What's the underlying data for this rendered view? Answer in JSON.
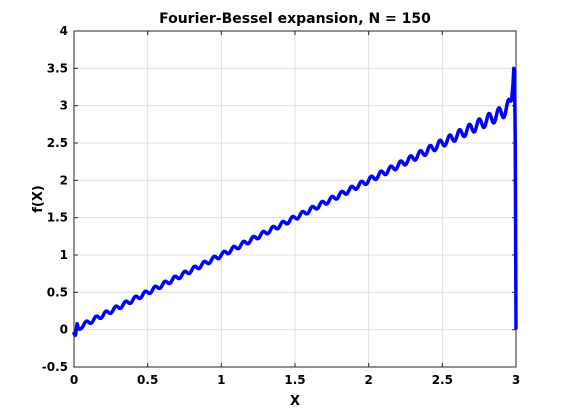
{
  "chart_data": {
    "type": "line",
    "title": "Fourier-Bessel expansion, N = 150",
    "xlabel": "X",
    "ylabel": "f(X)",
    "xlim": [
      0,
      3
    ],
    "ylim": [
      -0.5,
      4
    ],
    "grid": true,
    "x_ticks": [
      0,
      0.5,
      1,
      1.5,
      2,
      2.5,
      3
    ],
    "x_tick_labels": [
      "0",
      "0.5",
      "1",
      "1.5",
      "2",
      "2.5",
      "3"
    ],
    "y_ticks": [
      -0.5,
      0,
      0.5,
      1,
      1.5,
      2,
      2.5,
      3,
      3.5,
      4
    ],
    "y_tick_labels": [
      "-0.5",
      "0",
      "0.5",
      "1",
      "1.5",
      "2",
      "2.5",
      "3",
      "3.5",
      "4"
    ],
    "series": [
      {
        "color": "#0000ff",
        "x": [
          0,
          0.01,
          0.02,
          0.03,
          0.05,
          0.1,
          0.2,
          0.3,
          0.4,
          0.5,
          0.6,
          0.7,
          0.8,
          0.9,
          1.0,
          1.1,
          1.2,
          1.3,
          1.4,
          1.5,
          1.6,
          1.7,
          1.8,
          1.9,
          2.0,
          2.1,
          2.2,
          2.3,
          2.4,
          2.5,
          2.6,
          2.7,
          2.75,
          2.8,
          2.85,
          2.88,
          2.91,
          2.93,
          2.95,
          2.96,
          2.97,
          2.98,
          2.985,
          2.99,
          2.995,
          3.0
        ],
        "y": [
          -0.05,
          -0.08,
          0.06,
          0.0,
          0.05,
          0.1,
          0.2,
          0.3,
          0.4,
          0.5,
          0.6,
          0.7,
          0.8,
          0.9,
          1.0,
          1.1,
          1.2,
          1.3,
          1.4,
          1.5,
          1.6,
          1.7,
          1.8,
          1.9,
          2.0,
          2.1,
          2.2,
          2.3,
          2.4,
          2.5,
          2.6,
          2.7,
          2.75,
          2.8,
          2.85,
          2.88,
          2.92,
          2.95,
          2.99,
          3.0,
          3.1,
          3.3,
          3.5,
          3.45,
          2.5,
          0.02
        ]
      }
    ]
  }
}
